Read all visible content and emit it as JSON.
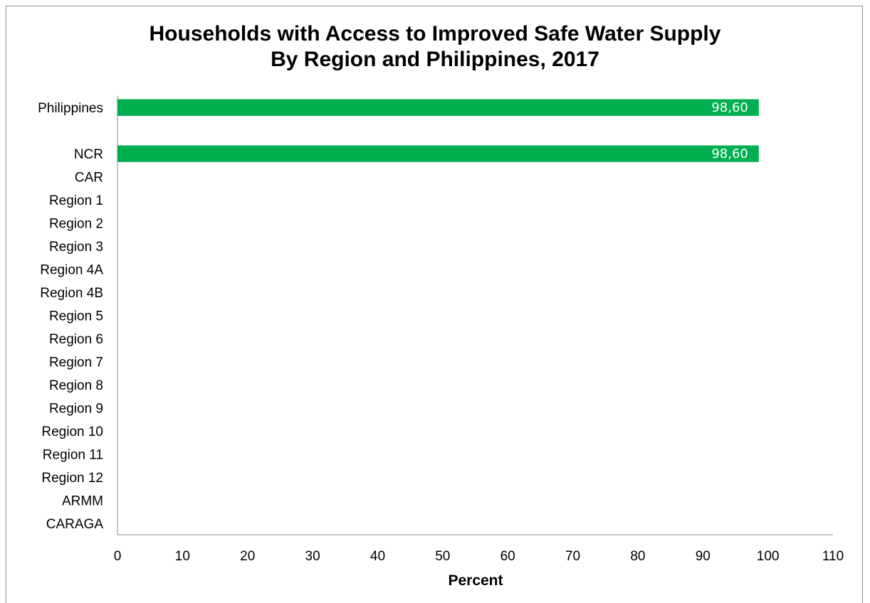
{
  "chart_data": {
    "type": "bar",
    "orientation": "horizontal",
    "title": "Households with Access to Improved Safe Water Supply",
    "subtitle": "By Region and Philippines, 2017",
    "xlabel": "Percent",
    "ylabel": "",
    "xlim": [
      0,
      110
    ],
    "x_ticks": [
      0,
      10,
      20,
      30,
      40,
      50,
      60,
      70,
      80,
      90,
      100,
      110
    ],
    "categories": [
      "Philippines",
      "",
      "NCR",
      "CAR",
      "Region 1",
      "Region 2",
      "Region 3",
      "Region 4A",
      "Region 4B",
      "Region 5",
      "Region 6",
      "Region 7",
      "Region 8",
      "Region 9",
      "Region 10",
      "Region 11",
      "Region 12",
      "ARMM",
      "CARAGA"
    ],
    "values": [
      98.6,
      null,
      98.6,
      null,
      null,
      null,
      null,
      null,
      null,
      null,
      null,
      null,
      null,
      null,
      null,
      null,
      null,
      null,
      null
    ],
    "data_labels": [
      "98,60",
      "",
      "98,60",
      "",
      "",
      "",
      "",
      "",
      "",
      "",
      "",
      "",
      "",
      "",
      "",
      "",
      "",
      "",
      ""
    ],
    "bar_color": "#00b050",
    "label_color": "#ffffff",
    "grid": false,
    "legend": "none"
  }
}
